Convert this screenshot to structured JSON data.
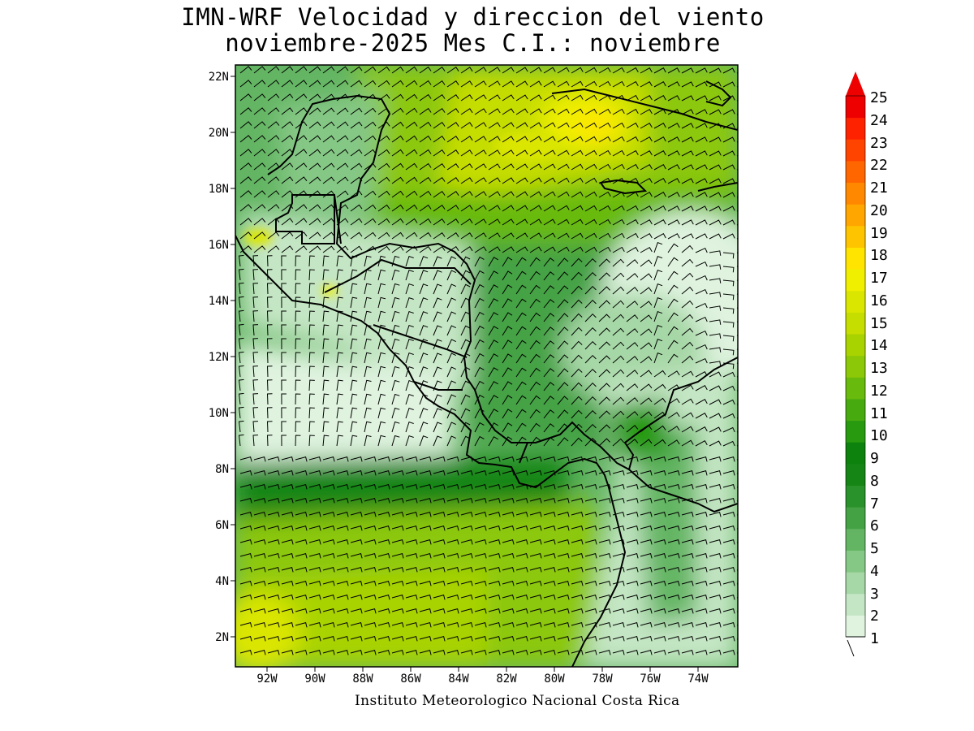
{
  "title": {
    "line1": "IMN-WRF Velocidad y direccion del viento",
    "line2": "noviembre-2025 Mes C.I.: noviembre"
  },
  "map": {
    "lat_labels": [
      "22N",
      "20N",
      "18N",
      "16N",
      "14N",
      "12N",
      "10N",
      "8N",
      "6N",
      "4N",
      "2N"
    ],
    "lon_labels": [
      "92W",
      "90W",
      "88W",
      "86W",
      "84W",
      "82W",
      "80W",
      "78W",
      "76W",
      "74W"
    ]
  },
  "colorbar": {
    "levels": [
      "1",
      "2",
      "3",
      "4",
      "5",
      "6",
      "7",
      "8",
      "9",
      "10",
      "11",
      "12",
      "13",
      "14",
      "15",
      "16",
      "17",
      "18",
      "19",
      "20",
      "21",
      "22",
      "23",
      "24",
      "25"
    ],
    "colors": [
      "#dff3df",
      "#c4e6c4",
      "#a6d7a6",
      "#85c785",
      "#63b563",
      "#44a244",
      "#2a922a",
      "#158615",
      "#0d820d",
      "#289a10",
      "#47ab10",
      "#68ba0d",
      "#8cc807",
      "#a9d300",
      "#c6dd00",
      "#dbe600",
      "#f0ef00",
      "#ffe400",
      "#ffc400",
      "#ffa600",
      "#ff8800",
      "#ff6600",
      "#ff4400",
      "#ff2200",
      "#ee0000"
    ]
  },
  "credit": "Instituto Meteorologico Nacional Costa Rica"
}
